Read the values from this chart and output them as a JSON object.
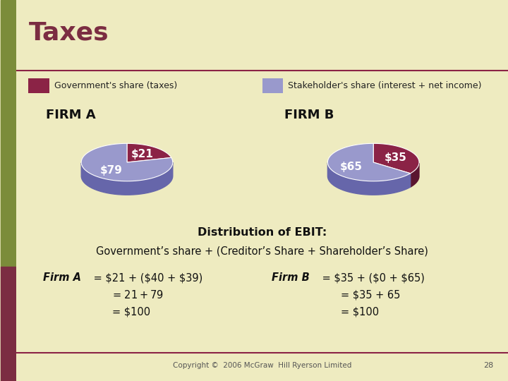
{
  "title": "Taxes",
  "title_color": "#7B2D42",
  "bg_color": "#EEEBC0",
  "sidebar_color_top": "#7B8C3A",
  "sidebar_color_bottom": "#7B2D42",
  "legend_gov_color": "#8B2346",
  "legend_stake_color": "#9999CC",
  "legend_gov_label": "Government's share (taxes)",
  "legend_stake_label": "Stakeholder's share (interest + net income)",
  "firm_a_label": "FIRM A",
  "firm_b_label": "FIRM B",
  "firm_a_values": [
    21,
    79
  ],
  "firm_b_values": [
    35,
    65
  ],
  "firm_a_labels": [
    "$21",
    "$79"
  ],
  "firm_b_labels": [
    "$35",
    "$65"
  ],
  "pie_color_gov": "#8B2346",
  "pie_color_stake": "#9999CC",
  "pie_shadow_gov": "#5A1530",
  "pie_shadow_stake": "#6666AA",
  "line_color": "#8B2346",
  "dist_title": "Distribution of EBIT:",
  "dist_subtitle": "Government’s share + (Creditor’s Share + Shareholder’s Share)",
  "firm_a_bold": "Firm A",
  "firm_a_eq1": " = $21 + ($40 + $39)",
  "firm_a_eq2": "= $21 + $79",
  "firm_a_eq3": "= $100",
  "firm_b_bold": "Firm B",
  "firm_b_eq1": " = $35 + ($0 + $65)",
  "firm_b_eq2": "= $35 + 65",
  "firm_b_eq3": "= $100",
  "copyright": "Copyright ©  2006 McGraw  Hill Ryerson Limited",
  "page_num": "28"
}
